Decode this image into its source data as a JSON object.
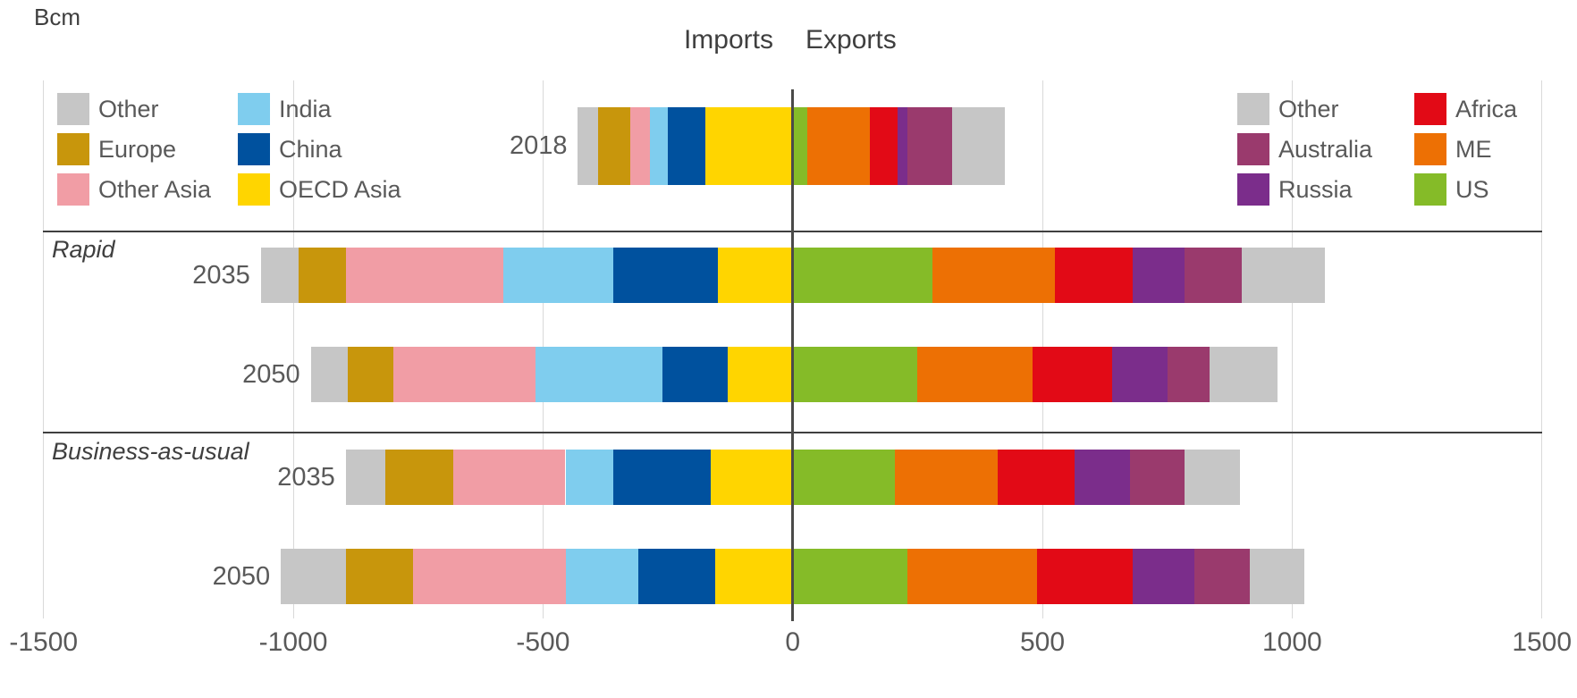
{
  "unit_label": "Bcm",
  "title": {
    "imports": "Imports",
    "exports": "Exports"
  },
  "colors": {
    "grid": "#d9d9d9",
    "zero_line": "#4a4a48",
    "separator": "#3f3f3f",
    "text_dark": "#3f3f3f",
    "text_gray": "#595959"
  },
  "legend_imports": {
    "columns": [
      [
        {
          "label": "Other",
          "color": "#c6c6c6"
        },
        {
          "label": "Europe",
          "color": "#c8960c"
        },
        {
          "label": "Other Asia",
          "color": "#f19da5"
        }
      ],
      [
        {
          "label": "India",
          "color": "#7fcdee"
        },
        {
          "label": "China",
          "color": "#00519e"
        },
        {
          "label": "OECD Asia",
          "color": "#ffd500"
        }
      ]
    ]
  },
  "legend_exports": {
    "columns": [
      [
        {
          "label": "Other",
          "color": "#c6c6c6"
        },
        {
          "label": "Australia",
          "color": "#9a3a6d"
        },
        {
          "label": "Russia",
          "color": "#7b2d8b"
        }
      ],
      [
        {
          "label": "Africa",
          "color": "#e20a16"
        },
        {
          "label": "ME",
          "color": "#ed7004"
        },
        {
          "label": "US",
          "color": "#85bb28"
        }
      ]
    ]
  },
  "chart_data": {
    "type": "bar",
    "variant": "diverging-stacked-horizontal",
    "unit": "Bcm",
    "x_ticks": [
      -1500,
      -1000,
      -500,
      0,
      500,
      1000,
      1500
    ],
    "xlim": [
      -1500,
      1500
    ],
    "left_side_title": "Imports",
    "right_side_title": "Exports",
    "import_stack_order_from_zero": [
      "OECD Asia",
      "China",
      "India",
      "Other Asia",
      "Europe",
      "Other"
    ],
    "export_stack_order_from_zero": [
      "US",
      "ME",
      "Africa",
      "Russia",
      "Australia",
      "Other"
    ],
    "region_colors": {
      "Other": "#c6c6c6",
      "Europe": "#c8960c",
      "Other Asia": "#f19da5",
      "India": "#7fcdee",
      "China": "#00519e",
      "OECD Asia": "#ffd500",
      "US": "#85bb28",
      "ME": "#ed7004",
      "Africa": "#e20a16",
      "Russia": "#7b2d8b",
      "Australia": "#9a3a6d"
    },
    "rows": [
      {
        "section_label": "",
        "year": "2018",
        "imports": [
          {
            "region": "OECD Asia",
            "value": 175
          },
          {
            "region": "China",
            "value": 75
          },
          {
            "region": "India",
            "value": 35
          },
          {
            "region": "Other Asia",
            "value": 40
          },
          {
            "region": "Europe",
            "value": 65
          },
          {
            "region": "Other",
            "value": 40
          }
        ],
        "exports": [
          {
            "region": "US",
            "value": 30
          },
          {
            "region": "ME",
            "value": 125
          },
          {
            "region": "Africa",
            "value": 55
          },
          {
            "region": "Russia",
            "value": 20
          },
          {
            "region": "Australia",
            "value": 90
          },
          {
            "region": "Other",
            "value": 105
          }
        ]
      },
      {
        "section_label": "Rapid",
        "year": "2035",
        "imports": [
          {
            "region": "OECD Asia",
            "value": 150
          },
          {
            "region": "China",
            "value": 210
          },
          {
            "region": "India",
            "value": 220
          },
          {
            "region": "Other Asia",
            "value": 315
          },
          {
            "region": "Europe",
            "value": 95
          },
          {
            "region": "Other",
            "value": 75
          }
        ],
        "exports": [
          {
            "region": "US",
            "value": 280
          },
          {
            "region": "ME",
            "value": 245
          },
          {
            "region": "Africa",
            "value": 155
          },
          {
            "region": "Russia",
            "value": 105
          },
          {
            "region": "Australia",
            "value": 115
          },
          {
            "region": "Other",
            "value": 165
          }
        ]
      },
      {
        "section_label": "",
        "year": "2050",
        "imports": [
          {
            "region": "OECD Asia",
            "value": 130
          },
          {
            "region": "China",
            "value": 130
          },
          {
            "region": "India",
            "value": 255
          },
          {
            "region": "Other Asia",
            "value": 285
          },
          {
            "region": "Europe",
            "value": 90
          },
          {
            "region": "Other",
            "value": 75
          }
        ],
        "exports": [
          {
            "region": "US",
            "value": 250
          },
          {
            "region": "ME",
            "value": 230
          },
          {
            "region": "Africa",
            "value": 160
          },
          {
            "region": "Russia",
            "value": 110
          },
          {
            "region": "Australia",
            "value": 85
          },
          {
            "region": "Other",
            "value": 135
          }
        ]
      },
      {
        "section_label": "Business-as-usual",
        "year": "2035",
        "imports": [
          {
            "region": "OECD Asia",
            "value": 165
          },
          {
            "region": "China",
            "value": 195
          },
          {
            "region": "India",
            "value": 95
          },
          {
            "region": "Other Asia",
            "value": 225
          },
          {
            "region": "Europe",
            "value": 135
          },
          {
            "region": "Other",
            "value": 80
          }
        ],
        "exports": [
          {
            "region": "US",
            "value": 205
          },
          {
            "region": "ME",
            "value": 205
          },
          {
            "region": "Africa",
            "value": 155
          },
          {
            "region": "Russia",
            "value": 110
          },
          {
            "region": "Australia",
            "value": 110
          },
          {
            "region": "Other",
            "value": 110
          }
        ]
      },
      {
        "section_label": "",
        "year": "2050",
        "imports": [
          {
            "region": "OECD Asia",
            "value": 155
          },
          {
            "region": "China",
            "value": 155
          },
          {
            "region": "India",
            "value": 145
          },
          {
            "region": "Other Asia",
            "value": 305
          },
          {
            "region": "Europe",
            "value": 135
          },
          {
            "region": "Other",
            "value": 130
          }
        ],
        "exports": [
          {
            "region": "US",
            "value": 230
          },
          {
            "region": "ME",
            "value": 260
          },
          {
            "region": "Africa",
            "value": 190
          },
          {
            "region": "Russia",
            "value": 125
          },
          {
            "region": "Australia",
            "value": 110
          },
          {
            "region": "Other",
            "value": 110
          }
        ]
      }
    ]
  }
}
